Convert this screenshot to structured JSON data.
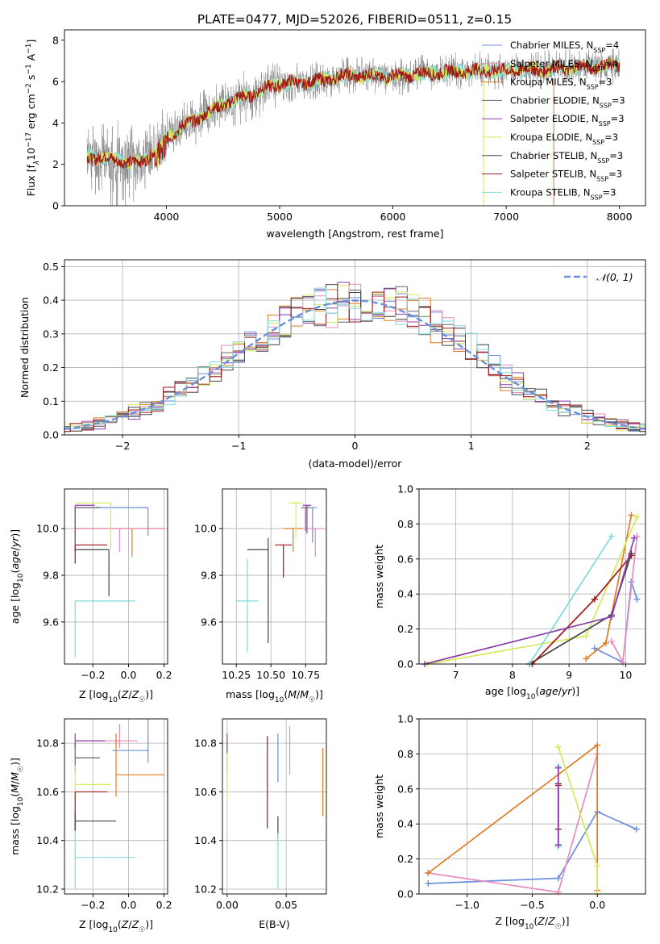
{
  "figure": {
    "title": "PLATE=0477, MJD=52026, FIBERID=0511, z=0.15"
  },
  "colors": {
    "grey": "#808080",
    "chabrier_miles": "#6a8fdc",
    "salpeter_miles": "#e88bc0",
    "kroupa_miles": "#e07b1f",
    "chabrier_elodie": "#666666",
    "salpeter_elodie": "#8b3fa8",
    "kroupa_elodie": "#d8e85a",
    "chabrier_stelib": "#444444",
    "salpeter_stelib": "#a01818",
    "kroupa_stelib": "#7ddbd8",
    "normal_curve": "#6a8fdc",
    "grid": "#b0b0b0"
  },
  "chart_data": [
    {
      "id": "spectrum",
      "type": "line",
      "xlabel": "wavelength [Angstrom, rest frame]",
      "ylabel": "Flux [f_λ 10^-17 erg cm^-2 s^-1 A^-1]",
      "xlim": [
        3100,
        8230
      ],
      "ylim": [
        0,
        8.5
      ],
      "xticks": [
        4000,
        5000,
        6000,
        7000,
        8000
      ],
      "yticks": [
        0,
        2,
        4,
        6,
        8
      ],
      "grid": false,
      "legend_position": "right",
      "legend": [
        {
          "label": "Chabrier MILES, N",
          "sub": "SSP",
          "eq": "=4",
          "color": "#6a8fdc"
        },
        {
          "label": "Salpeter MILES, N",
          "sub": "SSP",
          "eq": "=4",
          "color": "#e88bc0"
        },
        {
          "label": "Kroupa MILES, N",
          "sub": "SSP",
          "eq": "=3",
          "color": "#e07b1f"
        },
        {
          "label": "Chabrier ELODIE, N",
          "sub": "SSP",
          "eq": "=3",
          "color": "#666666"
        },
        {
          "label": "Salpeter ELODIE, N",
          "sub": "SSP",
          "eq": "=3",
          "color": "#8b3fa8"
        },
        {
          "label": "Kroupa ELODIE, N",
          "sub": "SSP",
          "eq": "=3",
          "color": "#d8e85a"
        },
        {
          "label": "Chabrier STELIB, N",
          "sub": "SSP",
          "eq": "=3",
          "color": "#444444"
        },
        {
          "label": "Salpeter STELIB, N",
          "sub": "SSP",
          "eq": "=3",
          "color": "#a01818"
        },
        {
          "label": "Kroupa STELIB, N",
          "sub": "SSP",
          "eq": "=3",
          "color": "#7ddbd8"
        }
      ],
      "data_range": [
        3300,
        8000
      ],
      "continuum_knots": [
        [
          3300,
          2.4
        ],
        [
          3450,
          2.3
        ],
        [
          3600,
          2.2
        ],
        [
          3700,
          2.0
        ],
        [
          3800,
          2.25
        ],
        [
          3900,
          2.6
        ],
        [
          4000,
          3.3
        ],
        [
          4200,
          4.0
        ],
        [
          4500,
          4.9
        ],
        [
          4800,
          5.5
        ],
        [
          5000,
          5.9
        ],
        [
          5300,
          6.0
        ],
        [
          5600,
          6.3
        ],
        [
          6000,
          6.25
        ],
        [
          6300,
          6.4
        ],
        [
          6600,
          6.5
        ],
        [
          7000,
          6.55
        ],
        [
          7400,
          6.6
        ],
        [
          7700,
          6.7
        ],
        [
          8000,
          6.8
        ]
      ],
      "model_lines": [
        {
          "color": "#7ddbd8",
          "width": 1.0
        },
        {
          "color": "#d8e85a",
          "width": 1.0
        },
        {
          "color": "#a01818",
          "width": 1.0
        }
      ],
      "vertical_lines": [
        {
          "x": 6800,
          "color": "#d8e85a"
        },
        {
          "x": 7420,
          "color": "#e07b1f"
        }
      ]
    },
    {
      "id": "residuals",
      "type": "histogram",
      "xlabel": "(data-model)/error",
      "ylabel": "Normed distribution",
      "xlim": [
        -2.5,
        2.5
      ],
      "ylim": [
        0,
        0.52
      ],
      "xticks": [
        -2,
        -1,
        0,
        1,
        2
      ],
      "yticks": [
        0.0,
        0.1,
        0.2,
        0.3,
        0.4,
        0.5
      ],
      "grid": true,
      "legend_position": "top-right",
      "legend": [
        {
          "label": "𝒩(0, 1)",
          "color": "#6a8fdc",
          "style": "dashed"
        }
      ],
      "bin_width": 0.1,
      "series": [
        {
          "color": "#6a8fdc",
          "seed": 1
        },
        {
          "color": "#e88bc0",
          "seed": 2
        },
        {
          "color": "#e07b1f",
          "seed": 3
        },
        {
          "color": "#666666",
          "seed": 4
        },
        {
          "color": "#8b3fa8",
          "seed": 5
        },
        {
          "color": "#d8e85a",
          "seed": 6
        },
        {
          "color": "#444444",
          "seed": 7
        },
        {
          "color": "#a01818",
          "seed": 8
        },
        {
          "color": "#7ddbd8",
          "seed": 9
        }
      ]
    },
    {
      "id": "age_vs_Z",
      "type": "errorbar",
      "xlabel": "Z [log10(Z/Z☉)]",
      "ylabel": "age [log10(age/yr)]",
      "xlim": [
        -0.36,
        0.22
      ],
      "ylim": [
        9.42,
        10.17
      ],
      "xticks": [
        -0.2,
        0.0,
        0.2
      ],
      "yticks": [
        9.6,
        9.8,
        10.0
      ],
      "grid": true,
      "points": [
        {
          "x": 0.02,
          "y": 10.0,
          "xerr": [
            0.32,
            0.18
          ],
          "yerr": [
            0.12,
            0.0
          ],
          "color": "#e07b1f"
        },
        {
          "x": 0.11,
          "y": 10.09,
          "xerr": [
            0.41,
            0.0
          ],
          "yerr": [
            0.12,
            0.0
          ],
          "color": "#6a8fdc"
        },
        {
          "x": -0.05,
          "y": 10.0,
          "xerr": [
            0.25,
            0.25
          ],
          "yerr": [
            0.1,
            0.0
          ],
          "color": "#e88bc0"
        },
        {
          "x": -0.1,
          "y": 10.11,
          "xerr": [
            0.2,
            0.0
          ],
          "yerr": [
            0.2,
            0.0
          ],
          "color": "#d8e85a"
        },
        {
          "x": -0.3,
          "y": 10.1,
          "xerr": [
            0.0,
            0.11
          ],
          "yerr": [
            0.2,
            0.0
          ],
          "color": "#8b3fa8"
        },
        {
          "x": -0.3,
          "y": 10.09,
          "xerr": [
            0.0,
            0.14
          ],
          "yerr": [
            0.15,
            0.0
          ],
          "color": "#666666"
        },
        {
          "x": -0.11,
          "y": 9.91,
          "xerr": [
            0.19,
            0.0
          ],
          "yerr": [
            0.2,
            0.0
          ],
          "color": "#444444"
        },
        {
          "x": -0.3,
          "y": 9.93,
          "xerr": [
            0.0,
            0.18
          ],
          "yerr": [
            0.08,
            0.0
          ],
          "color": "#a01818"
        },
        {
          "x": -0.3,
          "y": 9.69,
          "xerr": [
            0.0,
            0.34
          ],
          "yerr": [
            0.24,
            0.0
          ],
          "color": "#7ddbd8"
        }
      ]
    },
    {
      "id": "age_vs_mass",
      "type": "errorbar",
      "xlabel": "mass [log10(M/M☉)]",
      "ylabel": "",
      "xlim": [
        10.15,
        10.9
      ],
      "ylim": [
        9.42,
        10.17
      ],
      "xticks": [
        10.25,
        10.5,
        10.75
      ],
      "yticks": [
        9.6,
        9.8,
        10.0
      ],
      "grid": true,
      "points": [
        {
          "x": 10.66,
          "y": 10.0,
          "xerr": [
            0.07,
            0.07
          ],
          "yerr": [
            0.1,
            0.0
          ],
          "color": "#e07b1f"
        },
        {
          "x": 10.8,
          "y": 10.09,
          "xerr": [
            0.03,
            0.03
          ],
          "yerr": [
            0.15,
            0.0
          ],
          "color": "#6a8fdc"
        },
        {
          "x": 10.82,
          "y": 10.0,
          "xerr": [
            0.06,
            0.06
          ],
          "yerr": [
            0.12,
            0.0
          ],
          "color": "#e88bc0"
        },
        {
          "x": 10.68,
          "y": 10.11,
          "xerr": [
            0.05,
            0.05
          ],
          "yerr": [
            0.15,
            0.0
          ],
          "color": "#d8e85a"
        },
        {
          "x": 10.76,
          "y": 10.1,
          "xerr": [
            0.03,
            0.03
          ],
          "yerr": [
            0.12,
            0.0
          ],
          "color": "#8b3fa8"
        },
        {
          "x": 10.75,
          "y": 10.09,
          "xerr": [
            0.03,
            0.03
          ],
          "yerr": [
            0.1,
            0.0
          ],
          "color": "#666666"
        },
        {
          "x": 10.48,
          "y": 9.91,
          "xerr": [
            0.15,
            0.0
          ],
          "yerr": [
            0.4,
            0.05
          ],
          "color": "#444444"
        },
        {
          "x": 10.59,
          "y": 9.93,
          "xerr": [
            0.06,
            0.06
          ],
          "yerr": [
            0.14,
            0.0
          ],
          "color": "#a01818"
        },
        {
          "x": 10.33,
          "y": 9.69,
          "xerr": [
            0.08,
            0.08
          ],
          "yerr": [
            0.22,
            0.18
          ],
          "color": "#7ddbd8"
        }
      ]
    },
    {
      "id": "weight_vs_age",
      "type": "line",
      "xlabel": "age [log10(age/yr)]",
      "ylabel": "mass weight",
      "xlim": [
        6.35,
        10.35
      ],
      "ylim": [
        0,
        1.0
      ],
      "xticks": [
        7,
        8,
        9,
        10
      ],
      "yticks": [
        0.0,
        0.2,
        0.4,
        0.6,
        0.8,
        1.0
      ],
      "grid": true,
      "series": [
        {
          "color": "#6a8fdc",
          "x": [
            9.45,
            9.95,
            10.1,
            10.2
          ],
          "y": [
            0.09,
            0.01,
            0.47,
            0.37
          ]
        },
        {
          "color": "#e88bc0",
          "x": [
            9.75,
            9.95,
            10.2
          ],
          "y": [
            0.13,
            0.01,
            0.73
          ]
        },
        {
          "color": "#e07b1f",
          "x": [
            9.3,
            9.65,
            10.1
          ],
          "y": [
            0.03,
            0.12,
            0.85
          ]
        },
        {
          "color": "#d8e85a",
          "x": [
            6.5,
            9.3,
            10.2
          ],
          "y": [
            0.0,
            0.16,
            0.84
          ]
        },
        {
          "color": "#444444",
          "x": [
            8.3,
            9.75,
            10.1
          ],
          "y": [
            0.0,
            0.28,
            0.63
          ]
        },
        {
          "color": "#a01818",
          "x": [
            8.35,
            9.45,
            10.1
          ],
          "y": [
            0.0,
            0.37,
            0.62
          ]
        },
        {
          "color": "#7ddbd8",
          "x": [
            8.3,
            9.75
          ],
          "y": [
            0.0,
            0.73
          ]
        },
        {
          "color": "#8b3fa8",
          "x": [
            6.45,
            9.75,
            10.15
          ],
          "y": [
            0.0,
            0.27,
            0.72
          ]
        }
      ]
    },
    {
      "id": "mass_vs_Z",
      "type": "errorbar",
      "xlabel": "Z [log10(Z/Z☉)]",
      "ylabel": "mass [log10(M/M☉)]",
      "xlim": [
        -0.36,
        0.22
      ],
      "ylim": [
        10.18,
        10.9
      ],
      "xticks": [
        -0.2,
        0.0,
        0.2
      ],
      "yticks": [
        10.2,
        10.4,
        10.6,
        10.8
      ],
      "grid": true,
      "points": [
        {
          "x": 0.11,
          "y": 10.77,
          "xerr": [
            0.2,
            0.0
          ],
          "yerr": [
            0.05,
            0.13
          ],
          "color": "#6a8fdc"
        },
        {
          "x": -0.05,
          "y": 10.81,
          "xerr": [
            0.25,
            0.1
          ],
          "yerr": [
            0.03,
            0.07
          ],
          "color": "#e88bc0"
        },
        {
          "x": -0.3,
          "y": 10.81,
          "xerr": [
            0.0,
            0.17
          ],
          "yerr": [
            0.03,
            0.03
          ],
          "color": "#8b3fa8"
        },
        {
          "x": -0.07,
          "y": 10.67,
          "xerr": [
            0.0,
            0.27
          ],
          "yerr": [
            0.09,
            0.17
          ],
          "color": "#e07b1f"
        },
        {
          "x": -0.3,
          "y": 10.74,
          "xerr": [
            0.0,
            0.14
          ],
          "yerr": [
            0.06,
            0.06
          ],
          "color": "#666666"
        },
        {
          "x": -0.3,
          "y": 10.63,
          "xerr": [
            0.0,
            0.2
          ],
          "yerr": [
            0.08,
            0.08
          ],
          "color": "#d8e85a"
        },
        {
          "x": -0.3,
          "y": 10.6,
          "xerr": [
            0.0,
            0.18
          ],
          "yerr": [
            0.16,
            0.0
          ],
          "color": "#a01818"
        },
        {
          "x": -0.3,
          "y": 10.48,
          "xerr": [
            0.0,
            0.23
          ],
          "yerr": [
            0.04,
            0.04
          ],
          "color": "#444444"
        },
        {
          "x": -0.3,
          "y": 10.33,
          "xerr": [
            0.0,
            0.34
          ],
          "yerr": [
            0.13,
            0.11
          ],
          "color": "#7ddbd8"
        }
      ]
    },
    {
      "id": "mass_vs_EBV",
      "type": "errorbar",
      "xlabel": "E(B-V)",
      "ylabel": "",
      "xlim": [
        -0.004,
        0.084
      ],
      "ylim": [
        10.18,
        10.9
      ],
      "xticks": [
        0.0,
        0.05
      ],
      "yticks": [
        10.2,
        10.4,
        10.6,
        10.8
      ],
      "grid": true,
      "points": [
        {
          "x": 0.0,
          "y": 10.76,
          "xerr": [
            0,
            0
          ],
          "yerr": [
            0.08,
            0.08
          ],
          "color": "#8b3fa8"
        },
        {
          "x": 0.0,
          "y": 10.66,
          "xerr": [
            0,
            0
          ],
          "yerr": [
            0.1,
            0.1
          ],
          "color": "#d8e85a"
        },
        {
          "x": 0.034,
          "y": 10.6,
          "xerr": [
            0,
            0
          ],
          "yerr": [
            0.15,
            0.23
          ],
          "color": "#a01818"
        },
        {
          "x": 0.043,
          "y": 10.73,
          "xerr": [
            0,
            0
          ],
          "yerr": [
            0.09,
            0.11
          ],
          "color": "#6a8fdc"
        },
        {
          "x": 0.053,
          "y": 10.75,
          "xerr": [
            0,
            0
          ],
          "yerr": [
            0.08,
            0.12
          ],
          "color": "#e88bc0"
        },
        {
          "x": 0.043,
          "y": 10.45,
          "xerr": [
            0,
            0
          ],
          "yerr": [
            0.04,
            0.05
          ],
          "color": "#444444"
        },
        {
          "x": 0.043,
          "y": 10.32,
          "xerr": [
            0,
            0
          ],
          "yerr": [
            0.12,
            0.11
          ],
          "color": "#7ddbd8"
        },
        {
          "x": 0.081,
          "y": 10.64,
          "xerr": [
            0,
            0
          ],
          "yerr": [
            0.14,
            0.14
          ],
          "color": "#e07b1f"
        }
      ]
    },
    {
      "id": "weight_vs_Z",
      "type": "line",
      "xlabel": "Z [log10(Z/Z☉)]",
      "ylabel": "mass weight",
      "xlim": [
        -1.37,
        0.37
      ],
      "ylim": [
        0,
        1.0
      ],
      "xticks": [
        -1.0,
        -0.5,
        0.0
      ],
      "yticks": [
        0.0,
        0.2,
        0.4,
        0.6,
        0.8,
        1.0
      ],
      "grid": true,
      "series": [
        {
          "color": "#6a8fdc",
          "x": [
            -1.3,
            -0.3,
            0.0,
            0.3
          ],
          "y": [
            0.06,
            0.09,
            0.47,
            0.37
          ]
        },
        {
          "color": "#e88bc0",
          "x": [
            -1.3,
            -0.3,
            0.0
          ],
          "y": [
            0.12,
            0.01,
            0.8
          ]
        },
        {
          "color": "#e07b1f",
          "x": [
            -1.3,
            0.0,
            0.0
          ],
          "y": [
            0.12,
            0.85,
            0.02
          ]
        },
        {
          "color": "#d8e85a",
          "x": [
            -0.3,
            0.0,
            0.0
          ],
          "y": [
            0.84,
            0.16,
            0.0
          ]
        },
        {
          "color": "#444444",
          "x": [
            -0.3,
            -0.3
          ],
          "y": [
            0.63,
            0.28
          ]
        },
        {
          "color": "#a01818",
          "x": [
            -0.3,
            -0.3
          ],
          "y": [
            0.62,
            0.37
          ]
        },
        {
          "color": "#7ddbd8",
          "x": [
            -0.3,
            -0.3
          ],
          "y": [
            0.73,
            0.27
          ]
        },
        {
          "color": "#8b3fa8",
          "x": [
            -0.3,
            -0.3
          ],
          "y": [
            0.72,
            0.28
          ]
        }
      ]
    }
  ]
}
